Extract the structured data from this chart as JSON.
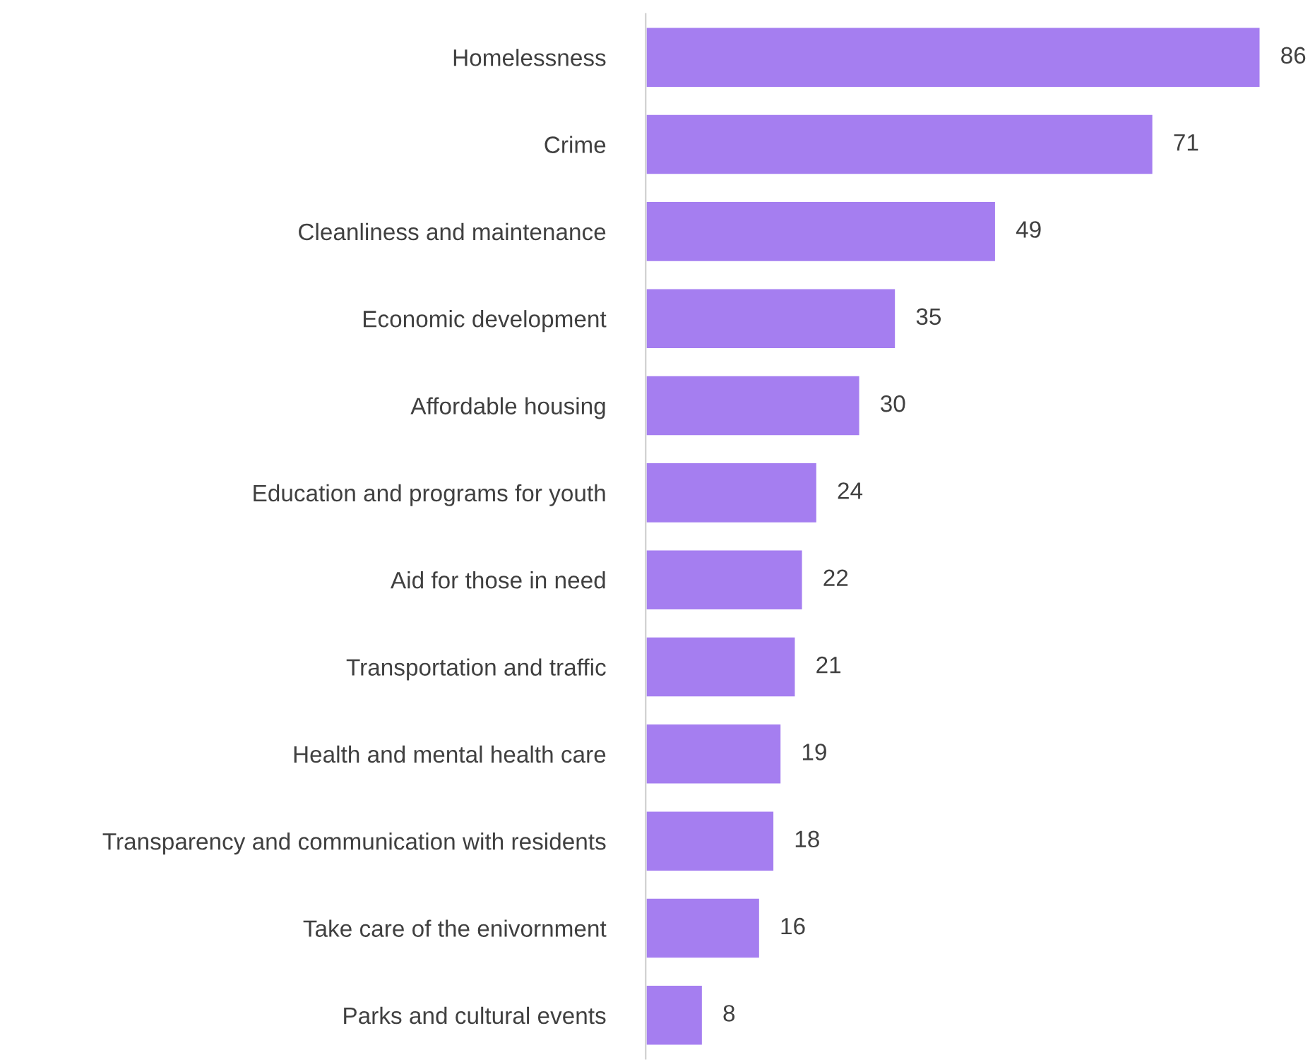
{
  "chart_data": {
    "type": "bar",
    "orientation": "horizontal",
    "categories": [
      "Homelessness",
      "Crime",
      "Cleanliness and maintenance",
      "Economic development",
      "Affordable housing",
      "Education and programs for youth",
      "Aid for those in need",
      "Transportation and traffic",
      "Health and mental health care",
      "Transparency and communication with residents",
      "Take care of the enivornment",
      "Parks and cultural events"
    ],
    "values": [
      86,
      71,
      49,
      35,
      30,
      24,
      22,
      21,
      19,
      18,
      16,
      8
    ],
    "color": "#a57ef0",
    "data_labels": true,
    "grid": false,
    "legend": false
  }
}
